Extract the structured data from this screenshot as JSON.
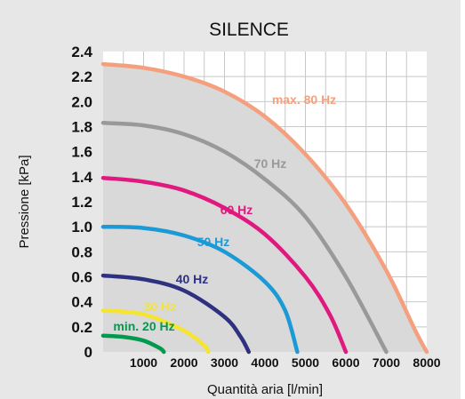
{
  "chart_data": {
    "type": "line",
    "title": "SILENCE",
    "xlabel": "Quantità aria [l/min]",
    "ylabel": "Pressione [kPa]",
    "xlim": [
      0,
      8000
    ],
    "ylim": [
      0,
      2.4
    ],
    "x_ticks": [
      "1000",
      "2000",
      "3000",
      "4000",
      "5000",
      "6000",
      "7000",
      "8000"
    ],
    "y_ticks": [
      "0",
      "0.2",
      "0.4",
      "0.6",
      "0.8",
      "1.0",
      "1.2",
      "1.4",
      "1.6",
      "1.8",
      "2.0",
      "2.2",
      "2.4"
    ],
    "grid": true,
    "series": [
      {
        "name": "max. 80 Hz",
        "color": "#f4a07e",
        "values": [
          [
            0,
            2.3
          ],
          [
            1000,
            2.27
          ],
          [
            2000,
            2.2
          ],
          [
            3000,
            2.08
          ],
          [
            4000,
            1.88
          ],
          [
            5000,
            1.58
          ],
          [
            6000,
            1.18
          ],
          [
            7000,
            0.65
          ],
          [
            7700,
            0.18
          ],
          [
            8000,
            0
          ]
        ]
      },
      {
        "name": "70 Hz",
        "color": "#999999",
        "values": [
          [
            0,
            1.83
          ],
          [
            1000,
            1.81
          ],
          [
            2000,
            1.74
          ],
          [
            3000,
            1.6
          ],
          [
            4000,
            1.38
          ],
          [
            5000,
            1.08
          ],
          [
            6000,
            0.6
          ],
          [
            7000,
            0
          ]
        ]
      },
      {
        "name": "60 Hz",
        "color": "#e0197f",
        "values": [
          [
            0,
            1.39
          ],
          [
            1000,
            1.36
          ],
          [
            2000,
            1.29
          ],
          [
            3000,
            1.15
          ],
          [
            4000,
            0.94
          ],
          [
            5000,
            0.6
          ],
          [
            5600,
            0.3
          ],
          [
            6000,
            0
          ]
        ]
      },
      {
        "name": "50 Hz",
        "color": "#1c9ad6",
        "values": [
          [
            0,
            1.0
          ],
          [
            1000,
            0.99
          ],
          [
            2000,
            0.93
          ],
          [
            3000,
            0.8
          ],
          [
            4000,
            0.56
          ],
          [
            4500,
            0.33
          ],
          [
            4800,
            0
          ]
        ]
      },
      {
        "name": "40 Hz",
        "color": "#2e3180",
        "values": [
          [
            0,
            0.61
          ],
          [
            1000,
            0.58
          ],
          [
            2000,
            0.49
          ],
          [
            3000,
            0.28
          ],
          [
            3400,
            0.12
          ],
          [
            3600,
            0
          ]
        ]
      },
      {
        "name": "30 Hz",
        "color": "#f5e531",
        "values": [
          [
            0,
            0.33
          ],
          [
            1000,
            0.3
          ],
          [
            2000,
            0.17
          ],
          [
            2500,
            0.05
          ],
          [
            2600,
            0
          ]
        ]
      },
      {
        "name": "min. 20 Hz",
        "color": "#009a4e",
        "values": [
          [
            0,
            0.13
          ],
          [
            500,
            0.12
          ],
          [
            1000,
            0.09
          ],
          [
            1400,
            0.03
          ],
          [
            1500,
            0
          ]
        ]
      }
    ]
  }
}
